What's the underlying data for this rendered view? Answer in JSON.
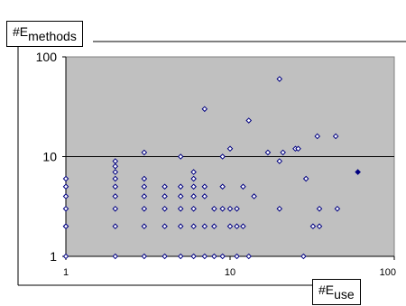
{
  "chart_data": {
    "type": "scatter",
    "title": "",
    "ylabel": {
      "base": "#E",
      "sub": "methods"
    },
    "xlabel": {
      "base": "#E",
      "sub": "use"
    },
    "xscale": "log",
    "yscale": "log",
    "xlim": [
      1,
      100
    ],
    "ylim": [
      1,
      100
    ],
    "x_ticks": [
      "1",
      "10",
      "100"
    ],
    "y_ticks": [
      "100",
      "10",
      "1"
    ],
    "grid": "horizontal major lines at 10 and 100",
    "plot_background": "#c0c0c0",
    "marker_color": "#000080",
    "legend": "none",
    "points": [
      [
        1,
        1
      ],
      [
        1,
        2
      ],
      [
        1,
        2
      ],
      [
        1,
        3
      ],
      [
        1,
        4
      ],
      [
        1,
        5
      ],
      [
        1,
        6
      ],
      [
        2,
        1
      ],
      [
        2,
        2
      ],
      [
        2,
        3
      ],
      [
        2,
        4
      ],
      [
        2,
        5
      ],
      [
        2,
        6
      ],
      [
        2,
        7
      ],
      [
        2,
        8
      ],
      [
        2,
        9
      ],
      [
        3,
        1
      ],
      [
        3,
        2
      ],
      [
        3,
        3
      ],
      [
        3,
        4
      ],
      [
        3,
        5
      ],
      [
        3,
        6
      ],
      [
        3,
        11
      ],
      [
        4,
        1
      ],
      [
        4,
        2
      ],
      [
        4,
        3
      ],
      [
        4,
        4
      ],
      [
        4,
        5
      ],
      [
        5,
        1
      ],
      [
        5,
        2
      ],
      [
        5,
        3
      ],
      [
        5,
        4
      ],
      [
        5,
        5
      ],
      [
        5,
        10
      ],
      [
        6,
        1
      ],
      [
        6,
        2
      ],
      [
        6,
        3
      ],
      [
        6,
        4
      ],
      [
        6,
        5
      ],
      [
        6,
        6
      ],
      [
        6,
        7
      ],
      [
        7,
        1
      ],
      [
        7,
        2
      ],
      [
        7,
        4
      ],
      [
        7,
        5
      ],
      [
        7,
        30
      ],
      [
        8,
        1
      ],
      [
        8,
        2
      ],
      [
        8,
        3
      ],
      [
        9,
        1
      ],
      [
        9,
        3
      ],
      [
        9,
        5
      ],
      [
        9,
        10
      ],
      [
        10,
        2
      ],
      [
        10,
        3
      ],
      [
        10,
        12
      ],
      [
        11,
        1
      ],
      [
        11,
        2
      ],
      [
        11,
        3
      ],
      [
        12,
        2
      ],
      [
        12,
        5
      ],
      [
        13,
        1
      ],
      [
        13,
        23
      ],
      [
        14,
        4
      ],
      [
        17,
        11
      ],
      [
        20,
        3
      ],
      [
        20,
        9
      ],
      [
        20,
        60
      ],
      [
        21,
        11
      ],
      [
        25,
        12
      ],
      [
        26,
        12
      ],
      [
        28,
        1
      ],
      [
        29,
        6
      ],
      [
        32,
        2
      ],
      [
        34,
        16
      ],
      [
        35,
        3
      ],
      [
        35,
        2
      ],
      [
        44,
        16
      ],
      [
        45,
        3
      ],
      [
        60,
        7
      ]
    ],
    "filled_points": [
      [
        60,
        7
      ]
    ]
  }
}
